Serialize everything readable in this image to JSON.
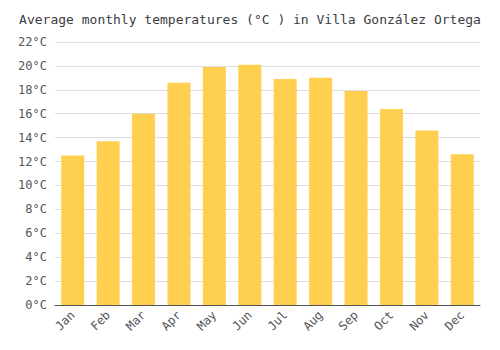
{
  "chart_data": {
    "type": "bar",
    "title": "Average monthly temperatures (°C ) in Villa González Ortega",
    "categories": [
      "Jan",
      "Feb",
      "Mar",
      "Apr",
      "May",
      "Jun",
      "Jul",
      "Aug",
      "Sep",
      "Oct",
      "Nov",
      "Dec"
    ],
    "values": [
      12.5,
      13.7,
      16.0,
      18.6,
      19.9,
      20.1,
      18.9,
      19.0,
      17.9,
      16.4,
      14.6,
      12.6
    ],
    "color": "#FFD050",
    "ylim": [
      0,
      22
    ],
    "yticks": [
      {
        "value": 0,
        "label": "0°C"
      },
      {
        "value": 2,
        "label": "2°C"
      },
      {
        "value": 4,
        "label": "4°C"
      },
      {
        "value": 6,
        "label": "6°C"
      },
      {
        "value": 8,
        "label": "8°C"
      },
      {
        "value": 10,
        "label": "10°C"
      },
      {
        "value": 12,
        "label": "12°C"
      },
      {
        "value": 14,
        "label": "14°C"
      },
      {
        "value": 16,
        "label": "16°C"
      },
      {
        "value": 18,
        "label": "18°C"
      },
      {
        "value": 20,
        "label": "20°C"
      },
      {
        "value": 22,
        "label": "22°C"
      }
    ],
    "grid": true
  }
}
